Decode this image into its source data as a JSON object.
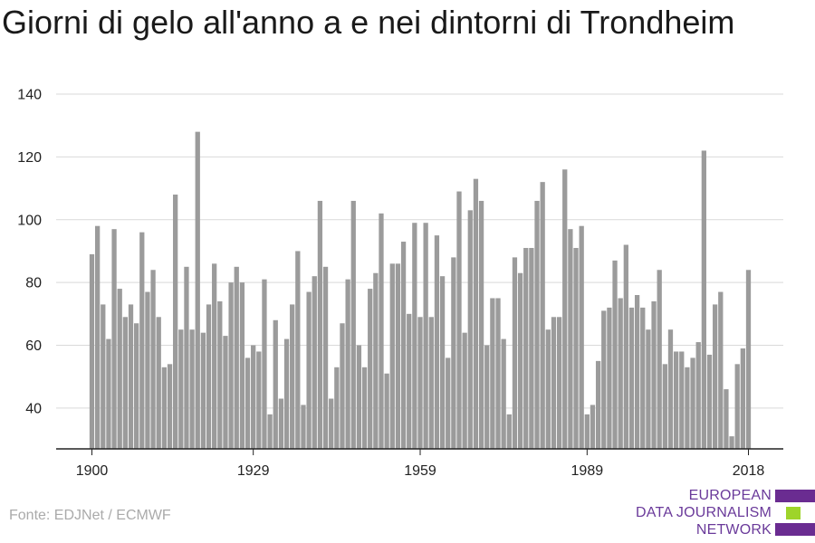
{
  "colors": {
    "bar": "#9b9b9b",
    "grid": "#d9d9d9",
    "axis": "#222222",
    "text": "#222222",
    "logo_purple": "#6a2c91",
    "logo_green": "#9ed42a"
  },
  "chart_data": {
    "type": "bar",
    "title": "Giorni di gelo all'anno a e nei dintorni di Trondheim",
    "xlabel": "",
    "ylabel": "",
    "ylim": [
      27,
      140
    ],
    "yticks": [
      40,
      60,
      80,
      100,
      120,
      140
    ],
    "xticks": [
      1900,
      1929,
      1959,
      1989,
      2018
    ],
    "grid": true,
    "legend": "none",
    "x": [
      1900,
      1901,
      1902,
      1903,
      1904,
      1905,
      1906,
      1907,
      1908,
      1909,
      1910,
      1911,
      1912,
      1913,
      1914,
      1915,
      1916,
      1917,
      1918,
      1919,
      1920,
      1921,
      1922,
      1923,
      1924,
      1925,
      1926,
      1927,
      1928,
      1929,
      1930,
      1931,
      1932,
      1933,
      1934,
      1935,
      1936,
      1937,
      1938,
      1939,
      1940,
      1941,
      1942,
      1943,
      1944,
      1945,
      1946,
      1947,
      1948,
      1949,
      1950,
      1951,
      1952,
      1953,
      1954,
      1955,
      1956,
      1957,
      1958,
      1959,
      1960,
      1961,
      1962,
      1963,
      1964,
      1965,
      1966,
      1967,
      1968,
      1969,
      1970,
      1971,
      1972,
      1973,
      1974,
      1975,
      1976,
      1977,
      1978,
      1979,
      1980,
      1981,
      1982,
      1983,
      1984,
      1985,
      1986,
      1987,
      1988,
      1989,
      1990,
      1991,
      1992,
      1993,
      1994,
      1995,
      1996,
      1997,
      1998,
      1999,
      2000,
      2001,
      2002,
      2003,
      2004,
      2005,
      2006,
      2007,
      2008,
      2009,
      2010,
      2011,
      2012,
      2013,
      2014,
      2015,
      2016,
      2017,
      2018
    ],
    "values": [
      89,
      98,
      73,
      62,
      97,
      78,
      69,
      73,
      67,
      96,
      77,
      84,
      69,
      53,
      54,
      108,
      65,
      85,
      65,
      128,
      64,
      73,
      86,
      74,
      63,
      80,
      85,
      80,
      56,
      60,
      58,
      81,
      38,
      68,
      43,
      62,
      73,
      90,
      41,
      77,
      82,
      106,
      85,
      43,
      53,
      67,
      81,
      106,
      60,
      53,
      78,
      83,
      102,
      51,
      86,
      86,
      93,
      70,
      99,
      69,
      99,
      69,
      95,
      82,
      56,
      88,
      109,
      64,
      103,
      113,
      106,
      60,
      75,
      75,
      62,
      38,
      88,
      83,
      91,
      91,
      106,
      112,
      65,
      69,
      69,
      116,
      97,
      91,
      98,
      38,
      41,
      55,
      71,
      72,
      87,
      75,
      92,
      72,
      76,
      72,
      65,
      74,
      84,
      54,
      65,
      58,
      58,
      53,
      56,
      61,
      122,
      57,
      73,
      77,
      46,
      31,
      54,
      59,
      84
    ]
  },
  "source": "Fonte: EDJNet / ECMWF",
  "logo": {
    "lines": [
      "EUROPEAN",
      "DATA JOURNALISM",
      "NETWORK"
    ]
  }
}
